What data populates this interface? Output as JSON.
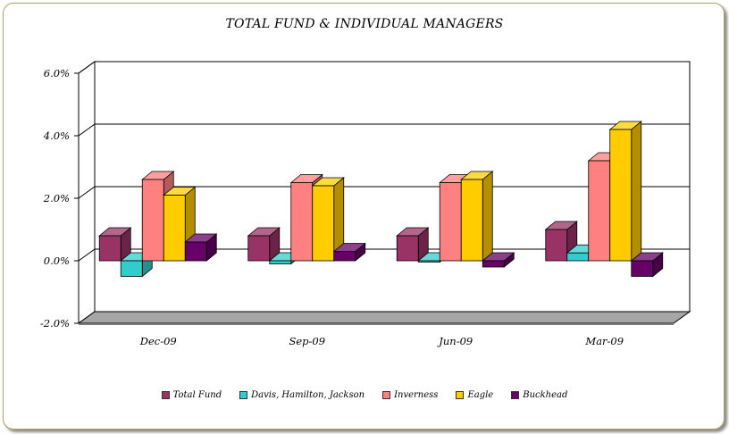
{
  "chart_data": {
    "type": "bar",
    "title": "TOTAL FUND  & INDIVIDUAL MANAGERS",
    "categories": [
      "Dec-09",
      "Sep-09",
      "Jun-09",
      "Mar-09"
    ],
    "series": [
      {
        "name": "Total Fund",
        "color": "#993366",
        "values": [
          0.8,
          0.8,
          0.8,
          1.0
        ]
      },
      {
        "name": "Davis, Hamilton, Jackson",
        "color": "#33CCCC",
        "values": [
          -0.5,
          -0.1,
          0.0,
          0.25
        ]
      },
      {
        "name": "Inverness",
        "color": "#FF8080",
        "values": [
          2.6,
          2.5,
          2.5,
          3.2
        ]
      },
      {
        "name": "Eagle",
        "color": "#FFCC00",
        "values": [
          2.1,
          2.4,
          2.6,
          4.2
        ]
      },
      {
        "name": "Buckhead",
        "color": "#660066",
        "values": [
          0.6,
          0.3,
          -0.2,
          -0.5
        ]
      }
    ],
    "yticks": [
      "6.0%",
      "4.0%",
      "2.0%",
      "0.0%",
      "-2.0%"
    ],
    "ylim": [
      -2.0,
      6.0
    ],
    "grid": true,
    "legend": "bottom"
  }
}
